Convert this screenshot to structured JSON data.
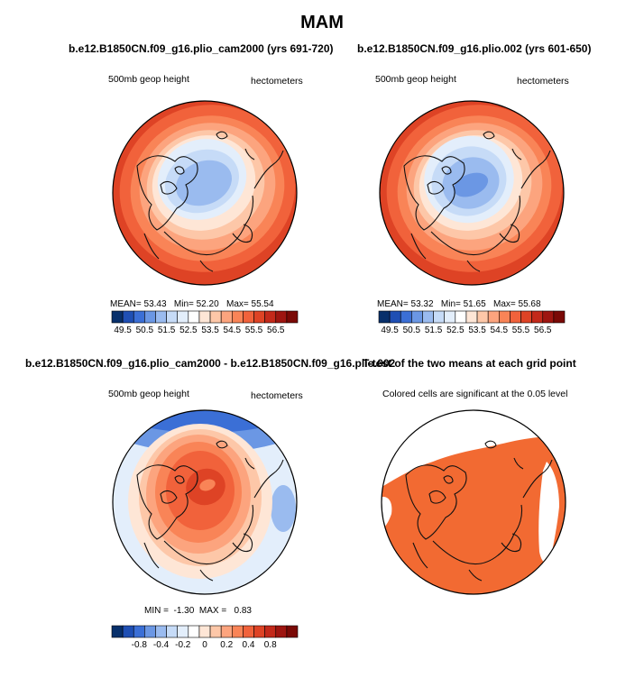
{
  "chart_data": {
    "type": "heatmap",
    "title": "MAM",
    "palette": [
      "#08306b",
      "#1f4fb4",
      "#3b6fd6",
      "#6b97e4",
      "#9abbef",
      "#c6dbf7",
      "#e3eefb",
      "#ffffff",
      "#fee6d6",
      "#fdc7a8",
      "#fca47e",
      "#f98457",
      "#f1623b",
      "#de4325",
      "#c3291a",
      "#9e1510",
      "#7a0906"
    ],
    "panels": [
      {
        "id": "cam2000",
        "title": "b.e12.B1850CN.f09_g16.plio_cam2000 (yrs 691-720)",
        "left_label": "500mb geop height",
        "right_label": "hectometers",
        "mean_label": "MEAN=",
        "mean": "53.43",
        "min_label": "Min=",
        "min": "52.20",
        "max_label": "Max=",
        "max": "55.54",
        "colorbar_ticks": [
          "49.5",
          "50.5",
          "51.5",
          "52.5",
          "53.5",
          "54.5",
          "55.5",
          "56.5"
        ]
      },
      {
        "id": "plio002",
        "title": "b.e12.B1850CN.f09_g16.plio.002 (yrs 601-650)",
        "left_label": "500mb geop height",
        "right_label": "hectometers",
        "mean_label": "MEAN=",
        "mean": "53.32",
        "min_label": "Min=",
        "min": "51.65",
        "max_label": "Max=",
        "max": "55.68",
        "colorbar_ticks": [
          "49.5",
          "50.5",
          "51.5",
          "52.5",
          "53.5",
          "54.5",
          "55.5",
          "56.5"
        ]
      },
      {
        "id": "difference",
        "title": "b.e12.B1850CN.f09_g16.plio_cam2000 - b.e12.B1850CN.f09_g16.plio.002",
        "left_label": "500mb geop height",
        "right_label": "hectometers",
        "min_label": "MIN =",
        "min": "-1.30",
        "max_label": "MAX =",
        "max": "0.83",
        "colorbar_ticks": [
          "-0.8",
          "-0.4",
          "-0.2",
          "0",
          "0.2",
          "0.4",
          "0.8"
        ]
      },
      {
        "id": "ttest",
        "title": "T-test of the two means at each grid point",
        "note": "Colored cells are significant at the 0.05 level",
        "significance_color": "#f26a32"
      }
    ]
  }
}
